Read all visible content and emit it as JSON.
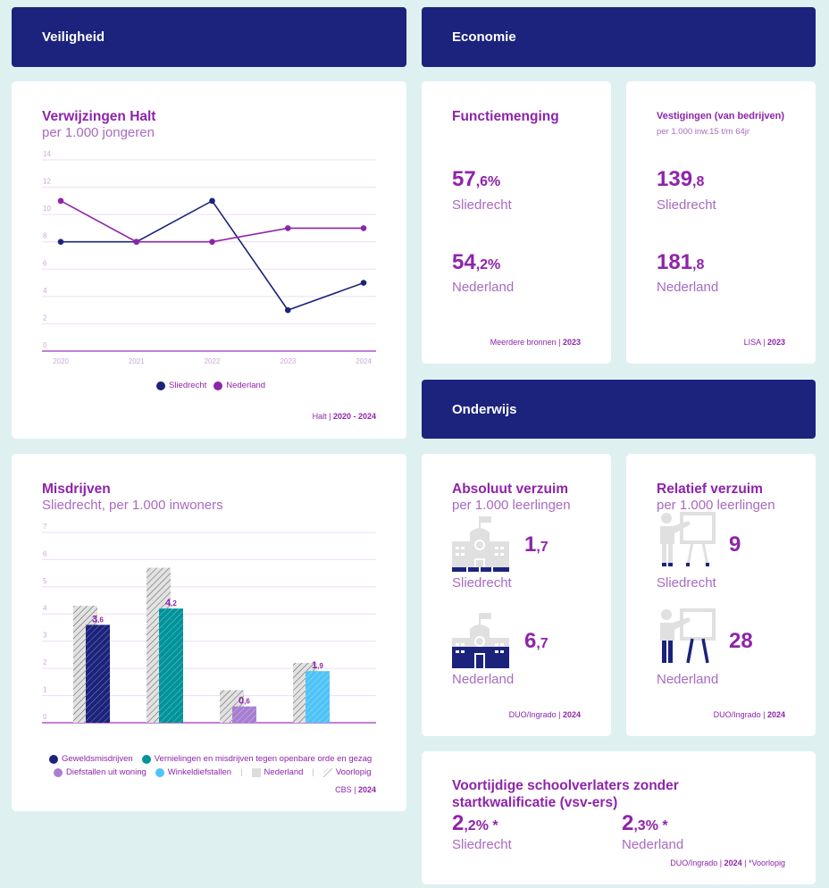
{
  "banners": {
    "veiligheid": "Veiligheid",
    "economie": "Economie",
    "onderwijs": "Onderwijs"
  },
  "halt": {
    "title": "Verwijzingen Halt",
    "subtitle": "per 1.000 jongeren",
    "source_prefix": "Halt | ",
    "source_year": "2020 - 2024"
  },
  "misdrijven": {
    "title": "Misdrijven",
    "subtitle": "Sliedrecht, per 1.000 inwoners",
    "legend": {
      "geweld": "Geweldsmisdrijven",
      "vernielingen": "Vernielingen en misdrijven tegen openbare orde en gezag",
      "diefstallen": "Diefstallen uit woning",
      "winkel": "Winkeldiefstallen",
      "nederland": "Nederland",
      "voorlopig": "Voorlopig",
      "separator": "|"
    },
    "source_prefix": "CBS | ",
    "source_year": "2024"
  },
  "functiemenging": {
    "title": "Functiemenging",
    "sliedrecht_int": "57",
    "sliedrecht_dec": ",6%",
    "sliedrecht_label": "Sliedrecht",
    "nederland_int": "54",
    "nederland_dec": ",2%",
    "nederland_label": "Nederland",
    "source_prefix": "Meerdere bronnen | ",
    "source_year": "2023"
  },
  "vestigingen": {
    "title": "Vestigingen (van bedrijven)",
    "subtitle": "per 1.000 inw.15 t/m 64jr",
    "sliedrecht_int": "139",
    "sliedrecht_dec": ",8",
    "sliedrecht_label": "Sliedrecht",
    "nederland_int": "181",
    "nederland_dec": ",8",
    "nederland_label": "Nederland",
    "source_prefix": "LISA | ",
    "source_year": "2023"
  },
  "absoluut": {
    "title": "Absoluut verzuim",
    "subtitle": "per 1.000 leerlingen",
    "sliedrecht_int": "1",
    "sliedrecht_dec": ",7",
    "sliedrecht_label": "Sliedrecht",
    "nederland_int": "6",
    "nederland_dec": ",7",
    "nederland_label": "Nederland",
    "source_prefix": "DUO/Ingrado | ",
    "source_year": "2024"
  },
  "relatief": {
    "title": "Relatief verzuim",
    "subtitle": "per 1.000 leerlingen",
    "sliedrecht_value": "9",
    "sliedrecht_label": "Sliedrecht",
    "nederland_value": "28",
    "nederland_label": "Nederland",
    "source_prefix": "DUO/Ingrado | ",
    "source_year": "2024"
  },
  "vsv": {
    "title_line1": "Voortijdige schoolverlaters zonder",
    "title_line2": "startkwalificatie (vsv-ers)",
    "sliedrecht_int": "2",
    "sliedrecht_dec": ",2% ",
    "sliedrecht_star": "*",
    "sliedrecht_label": "Sliedrecht",
    "nederland_int": "2",
    "nederland_dec": ",3% ",
    "nederland_star": "*",
    "nederland_label": "Nederland",
    "source_prefix": "DUO/Ingrado | ",
    "source_year": "2024",
    "source_suffix": " | *Voorlopig"
  },
  "colors": {
    "navy": "#1b237c",
    "purple": "#8e24aa",
    "teal": "#00939a",
    "lavender": "#a77fd0",
    "sky": "#4fc3f7",
    "grey": "#dddddd",
    "grid": "#efdcf4"
  },
  "chart_data": [
    {
      "type": "line",
      "title": "Verwijzingen Halt",
      "subtitle": "per 1.000 jongeren",
      "x": [
        "2020",
        "2021",
        "2022",
        "2023",
        "2024"
      ],
      "series": [
        {
          "name": "Sliedrecht",
          "values": [
            8,
            8,
            11,
            3,
            5
          ],
          "color": "#1b237c"
        },
        {
          "name": "Nederland",
          "values": [
            11,
            8,
            8,
            9,
            9
          ],
          "color": "#8e24aa"
        }
      ],
      "yticks": [
        "0",
        "2",
        "4",
        "6",
        "8",
        "10",
        "12",
        "14"
      ],
      "ylim": [
        0,
        14
      ],
      "grid": true,
      "legend": "bottom"
    },
    {
      "type": "bar",
      "title": "Misdrijven",
      "subtitle": "Sliedrecht, per 1.000 inwoners",
      "categories": [
        "Geweldsmisdrijven",
        "Vernielingen en misdrijven tegen openbare orde en gezag",
        "Diefstallen uit woning",
        "Winkeldiefstallen"
      ],
      "series": [
        {
          "name": "Nederland",
          "values": [
            4.3,
            5.7,
            1.2,
            2.2
          ]
        },
        {
          "name": "Sliedrecht",
          "values": [
            3.6,
            4.2,
            0.6,
            1.9
          ],
          "labels": [
            [
              "3",
              ",6"
            ],
            [
              "4",
              ",2"
            ],
            [
              "0",
              ",6"
            ],
            [
              "1",
              ",9"
            ]
          ],
          "colors": [
            "#1b237c",
            "#00939a",
            "#a77fd0",
            "#4fc3f7"
          ]
        }
      ],
      "yticks": [
        "0",
        "1",
        "2",
        "3",
        "4",
        "5",
        "6",
        "7"
      ],
      "ylim": [
        0,
        7
      ],
      "grid": true,
      "legend": "bottom",
      "note": "Voorlopig (hatched)"
    }
  ]
}
